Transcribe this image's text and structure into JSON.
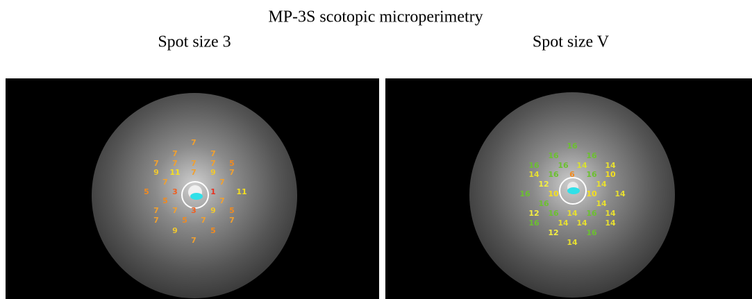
{
  "title": "MP-3S scotopic microperimetry",
  "panels": [
    {
      "label": "Spot size 3",
      "points": [
        {
          "value": 7,
          "color": "#f0a030"
        },
        {
          "value": 7,
          "color": "#f0a030"
        },
        {
          "value": 7,
          "color": "#f0a030"
        },
        {
          "value": 7,
          "color": "#f0a030"
        },
        {
          "value": 7,
          "color": "#f0a030"
        },
        {
          "value": 7,
          "color": "#f0a030"
        },
        {
          "value": 7,
          "color": "#f0a030"
        },
        {
          "value": 5,
          "color": "#f08a20"
        },
        {
          "value": 9,
          "color": "#f0c830"
        },
        {
          "value": 11,
          "color": "#f5e020"
        },
        {
          "value": 7,
          "color": "#f0a030"
        },
        {
          "value": 9,
          "color": "#f0c830"
        },
        {
          "value": 7,
          "color": "#f0a030"
        },
        {
          "value": 7,
          "color": "#f0a030"
        },
        {
          "value": 7,
          "color": "#f0a030"
        },
        {
          "value": 5,
          "color": "#f08a20"
        },
        {
          "value": 3,
          "color": "#f06020"
        },
        {
          "value": 1,
          "color": "#e83020"
        },
        {
          "value": 11,
          "color": "#f5e020"
        },
        {
          "value": 5,
          "color": "#f08a20"
        },
        {
          "value": 7,
          "color": "#f0a030"
        },
        {
          "value": 7,
          "color": "#f0a030"
        },
        {
          "value": 7,
          "color": "#f0a030"
        },
        {
          "value": 3,
          "color": "#f06020"
        },
        {
          "value": 9,
          "color": "#f0c830"
        },
        {
          "value": 5,
          "color": "#f08a20"
        },
        {
          "value": 7,
          "color": "#f0a030"
        },
        {
          "value": 5,
          "color": "#f08a20"
        },
        {
          "value": 7,
          "color": "#f0a030"
        },
        {
          "value": 7,
          "color": "#f0a030"
        },
        {
          "value": 9,
          "color": "#f0c830"
        },
        {
          "value": 5,
          "color": "#f08a20"
        },
        {
          "value": 7,
          "color": "#f0a030"
        }
      ]
    },
    {
      "label": "Spot size V",
      "points": [
        {
          "value": 16,
          "color": "#6cc030"
        },
        {
          "value": 16,
          "color": "#6cc030"
        },
        {
          "value": 16,
          "color": "#6cc030"
        },
        {
          "value": 16,
          "color": "#6cc030"
        },
        {
          "value": 16,
          "color": "#6cc030"
        },
        {
          "value": 14,
          "color": "#d8e030"
        },
        {
          "value": 14,
          "color": "#e8e030"
        },
        {
          "value": 14,
          "color": "#e8e030"
        },
        {
          "value": 16,
          "color": "#6cc030"
        },
        {
          "value": 6,
          "color": "#f08a20"
        },
        {
          "value": 16,
          "color": "#6cc030"
        },
        {
          "value": 10,
          "color": "#f5e020"
        },
        {
          "value": 12,
          "color": "#f5f040"
        },
        {
          "value": 14,
          "color": "#e8e030"
        },
        {
          "value": 16,
          "color": "#6cc030"
        },
        {
          "value": 10,
          "color": "#f5e020"
        },
        {
          "value": 10,
          "color": "#f5e020"
        },
        {
          "value": 14,
          "color": "#e8e030"
        },
        {
          "value": 16,
          "color": "#6cc030"
        },
        {
          "value": 14,
          "color": "#e8e030"
        },
        {
          "value": 12,
          "color": "#f5f040"
        },
        {
          "value": 16,
          "color": "#6cc030"
        },
        {
          "value": 14,
          "color": "#e8e030"
        },
        {
          "value": 16,
          "color": "#6cc030"
        },
        {
          "value": 14,
          "color": "#e8e030"
        },
        {
          "value": 16,
          "color": "#6cc030"
        },
        {
          "value": 14,
          "color": "#e8e030"
        },
        {
          "value": 14,
          "color": "#e8e030"
        },
        {
          "value": 14,
          "color": "#e8e030"
        },
        {
          "value": 12,
          "color": "#f5f040"
        },
        {
          "value": 16,
          "color": "#6cc030"
        },
        {
          "value": 14,
          "color": "#e8e030"
        }
      ]
    }
  ]
}
